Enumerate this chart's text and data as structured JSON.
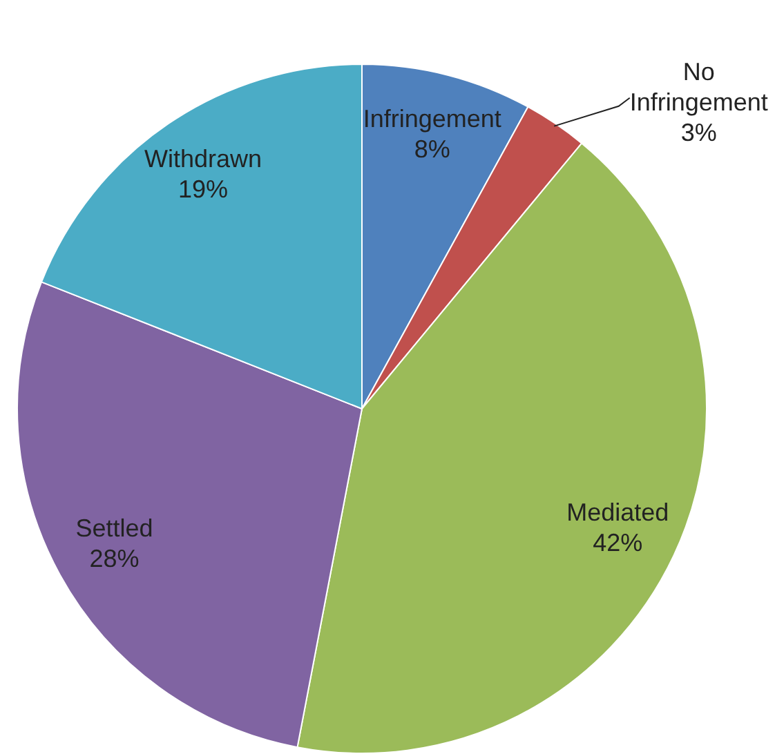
{
  "chart_data": {
    "type": "pie",
    "categories": [
      "Infringement",
      "No Infringement",
      "Mediated",
      "Settled",
      "Withdrawn"
    ],
    "values": [
      8,
      3,
      42,
      28,
      19
    ],
    "colors": [
      "#4f81bd",
      "#c0504d",
      "#9bbb59",
      "#8064a2",
      "#4bacc6"
    ],
    "value_labels": [
      "8%",
      "3%",
      "42%",
      "28%",
      "19%"
    ],
    "legend": false
  }
}
